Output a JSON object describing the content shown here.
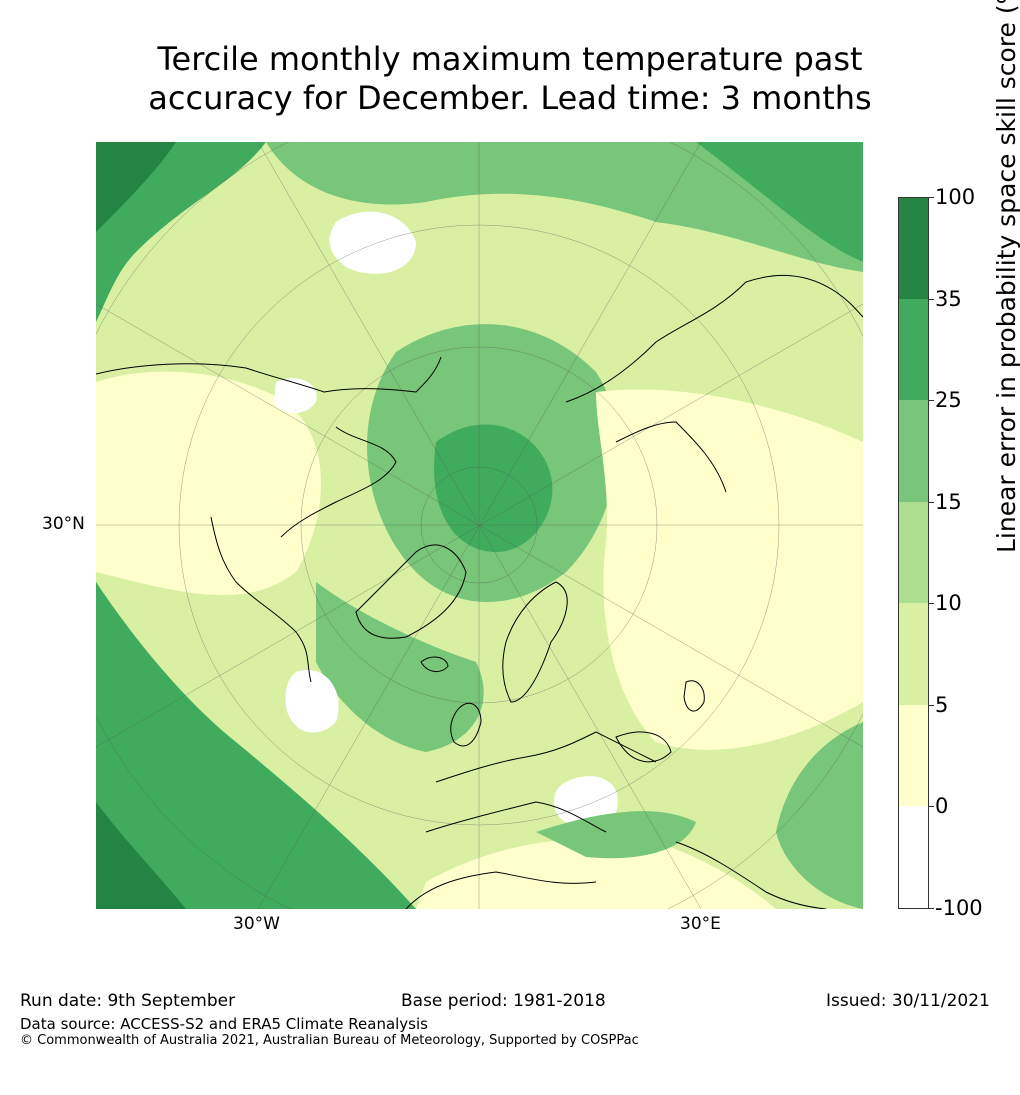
{
  "title_line1": "Tercile monthly maximum temperature past",
  "title_line2": "accuracy for December. Lead time: 3 months",
  "map": {
    "lat_label": "30°N",
    "lon_labels": [
      "30°W",
      "30°E"
    ],
    "colors": {
      "c_neg": "#ffffff",
      "c0": "#ffffcc",
      "c5": "#d9f0a3",
      "c10": "#addd8e",
      "c15": "#78c679",
      "c25": "#41ab5d",
      "c35": "#238443",
      "coast": "#000000",
      "grid": "#555555"
    }
  },
  "colorbar": {
    "label": "Linear error in probability space skill score (%)",
    "ticks": [
      "100",
      "35",
      "25",
      "15",
      "10",
      "5",
      "0",
      "-100"
    ],
    "colors": [
      "#238443",
      "#41ab5d",
      "#78c679",
      "#addd8e",
      "#d9f0a3",
      "#ffffcc",
      "#ffffff"
    ]
  },
  "footer": {
    "run_date": "Run date: 9th September",
    "base_period": "Base period: 1981-2018",
    "issued": "Issued: 30/11/2021",
    "data_source": "Data source: ACCESS-S2 and ERA5 Climate Reanalysis",
    "copyright": "© Commonwealth of Australia 2021, Australian Bureau of Meteorology, Supported by COSPPac"
  }
}
